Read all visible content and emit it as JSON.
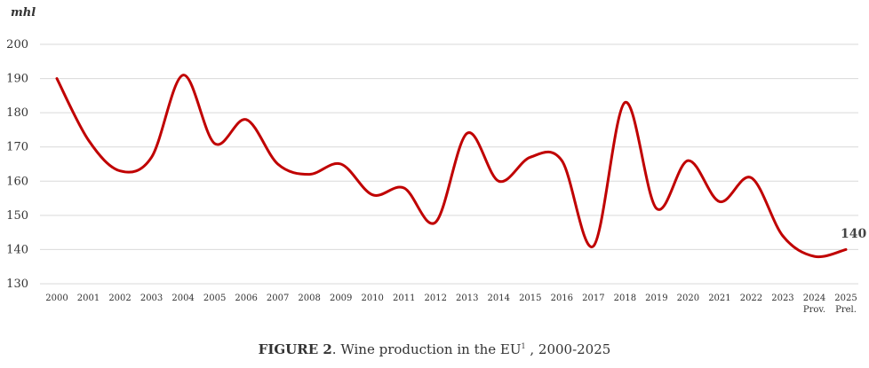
{
  "chart_data": {
    "type": "line",
    "ylabel": "mhl",
    "ylim": [
      130,
      200
    ],
    "yticks": [
      130,
      140,
      150,
      160,
      170,
      180,
      190,
      200
    ],
    "categories": [
      "2000",
      "2001",
      "2002",
      "2003",
      "2004",
      "2005",
      "2006",
      "2007",
      "2008",
      "2009",
      "2010",
      "2011",
      "2012",
      "2013",
      "2014",
      "2015",
      "2016",
      "2017",
      "2018",
      "2019",
      "2020",
      "2021",
      "2022",
      "2023",
      "2024",
      "2025"
    ],
    "category_sublabels": {
      "2024": "Prov.",
      "2025": "Prel."
    },
    "series": [
      {
        "name": "Wine production in the EU",
        "color": "#c00000",
        "values": [
          190,
          172,
          163,
          167,
          191,
          171,
          178,
          165,
          162,
          165,
          156,
          158,
          148,
          174,
          160,
          167,
          166,
          141,
          183,
          152,
          166,
          154,
          161,
          144,
          138,
          140
        ]
      }
    ],
    "end_label": "140",
    "grid": true
  },
  "caption": {
    "bold": "FIGURE 2",
    "text": ". Wine production in the EU",
    "sup": "1",
    "tail": " , 2000-2025"
  }
}
